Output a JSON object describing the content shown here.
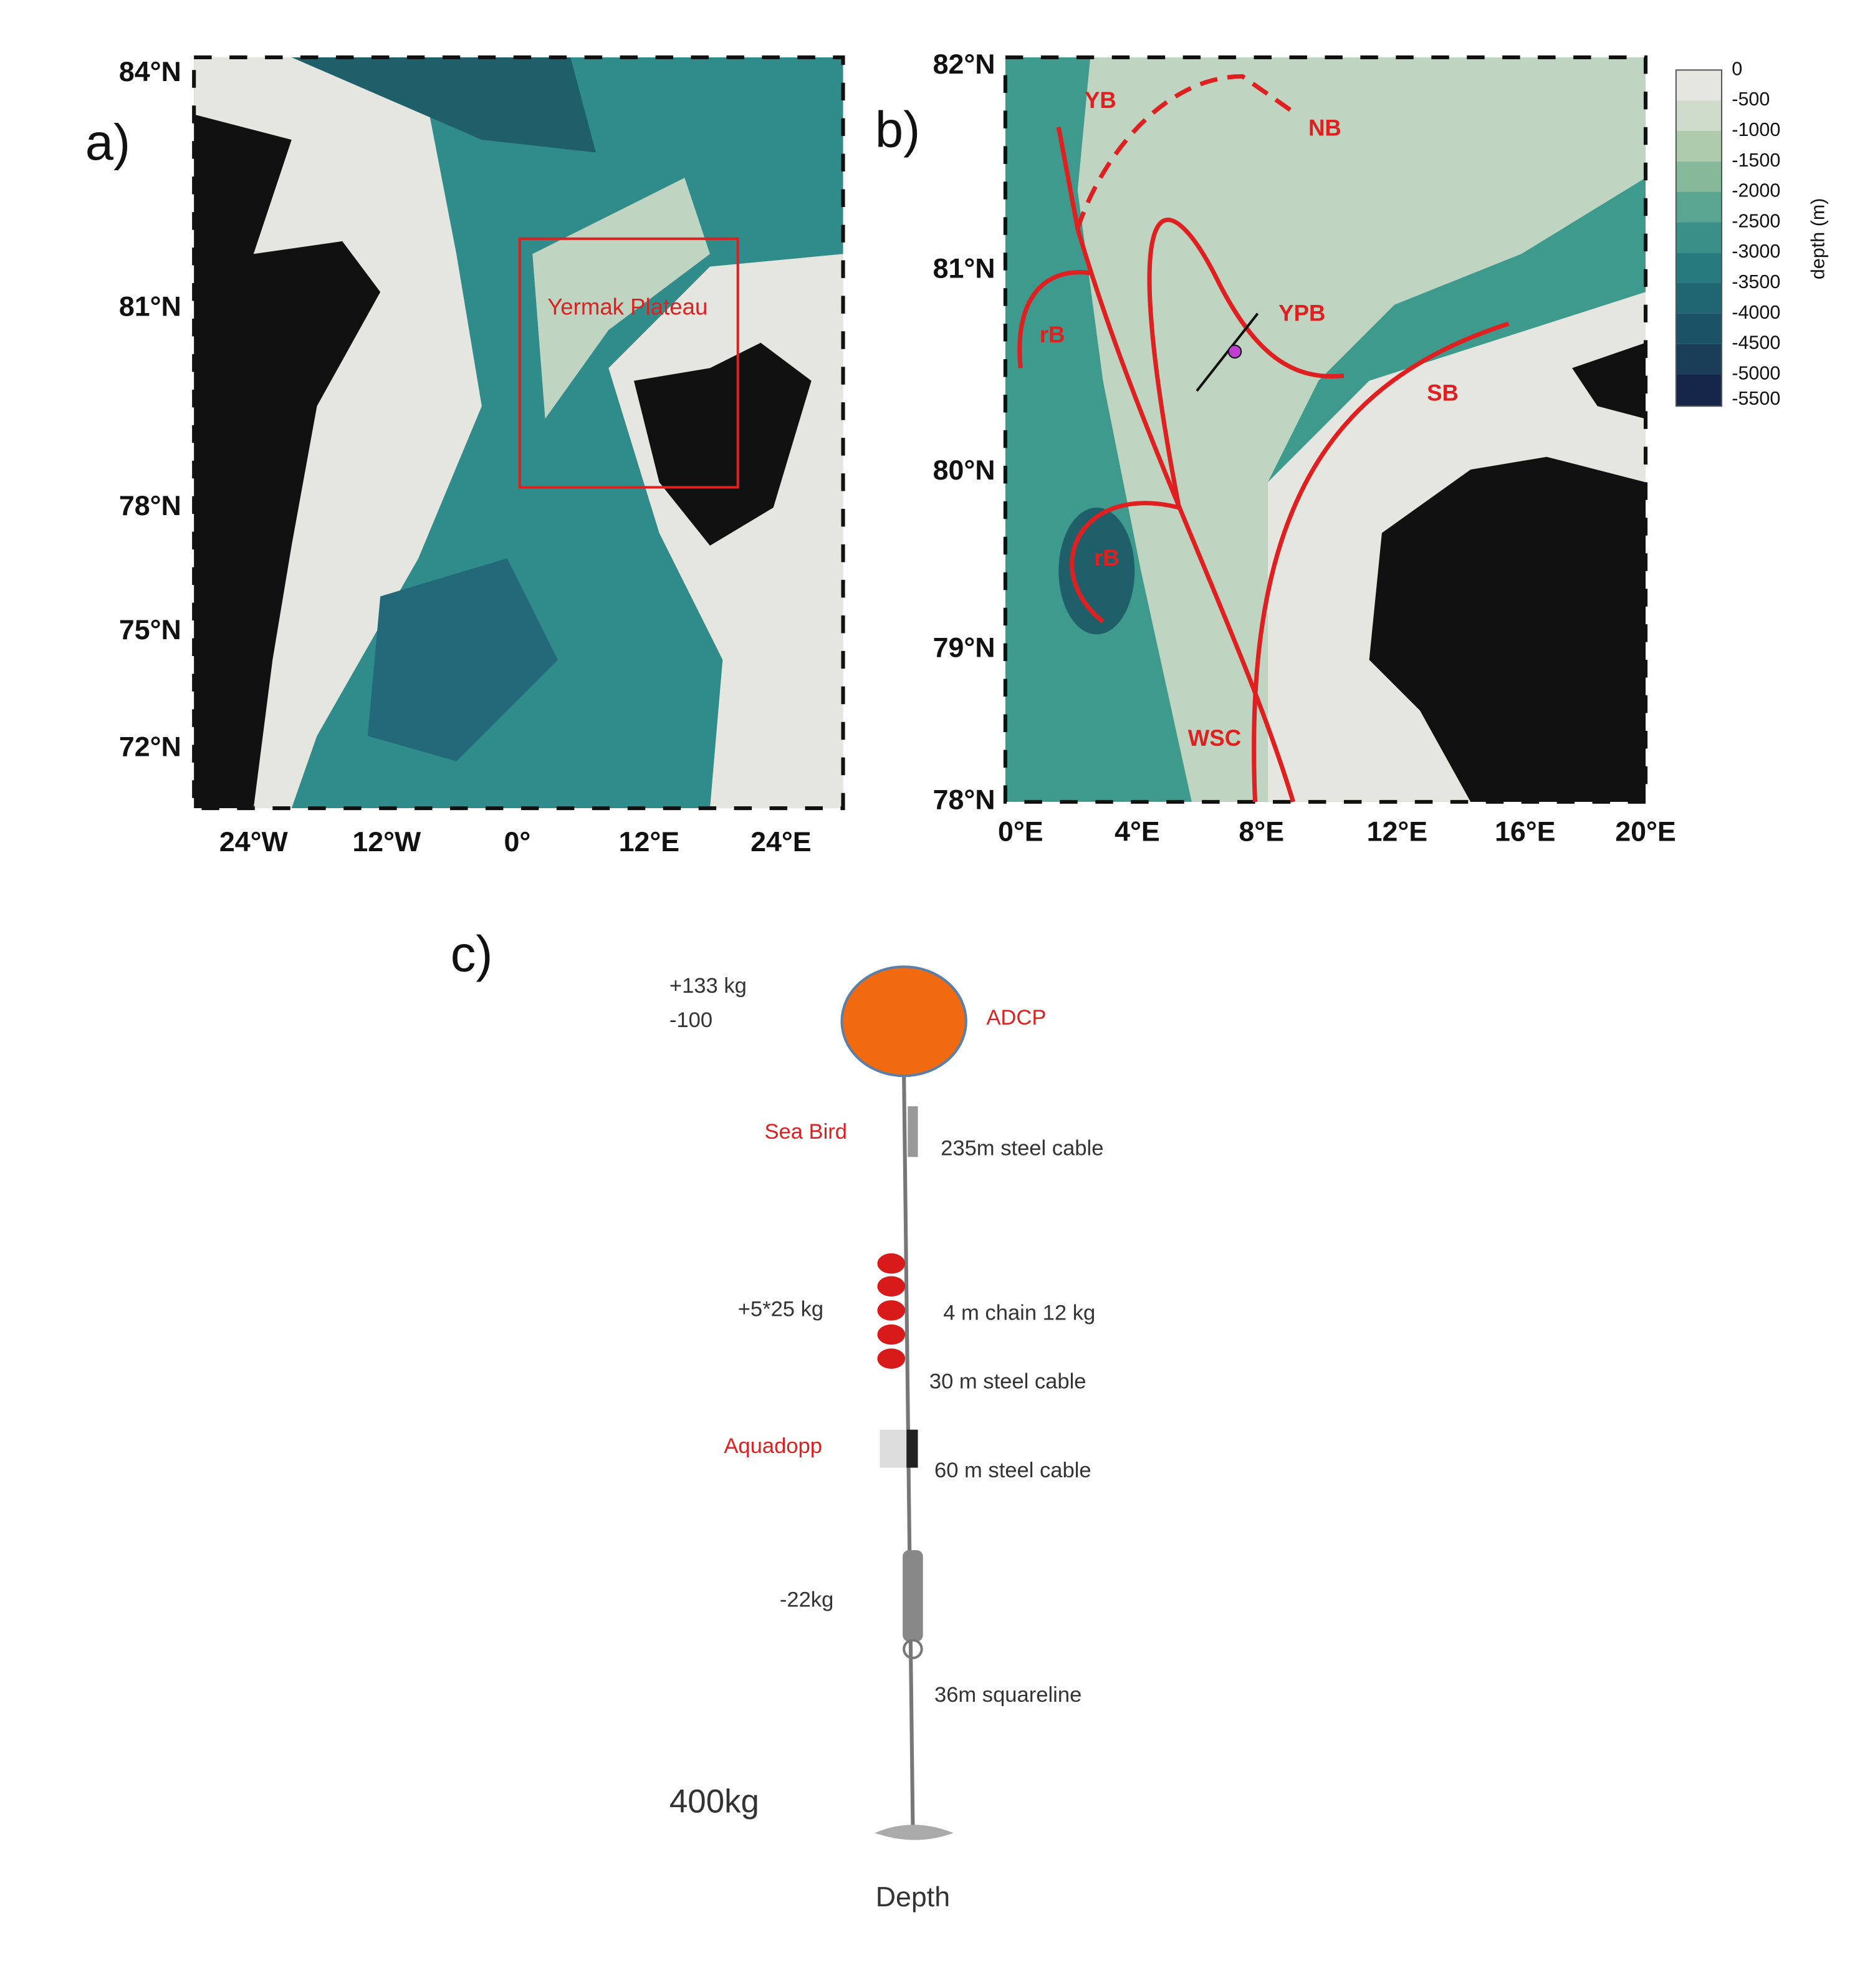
{
  "panel_a": {
    "label": "a)",
    "lat_labels": [
      "84°N",
      "81°N",
      "78°N",
      "75°N",
      "72°N"
    ],
    "lon_labels": [
      "24°W",
      "12°W",
      "0°",
      "12°E",
      "24°E"
    ],
    "box_label": "Yermak Plateau"
  },
  "panel_b": {
    "label": "b)",
    "lat_labels": [
      "82°N",
      "81°N",
      "80°N",
      "79°N",
      "78°N"
    ],
    "lon_labels": [
      "0°E",
      "4°E",
      "8°E",
      "12°E",
      "16°E",
      "20°E"
    ],
    "annotations": [
      "YB",
      "NB",
      "rB",
      "YPB",
      "SB",
      "rB",
      "WSC"
    ],
    "colorbar": {
      "title": "depth (m)",
      "ticks": [
        "0",
        "-500",
        "-1000",
        "-1500",
        "-2000",
        "-2500",
        "-3000",
        "-3500",
        "-4000",
        "-4500",
        "-5000",
        "-5500"
      ]
    }
  },
  "panel_c": {
    "label": "c)",
    "labels": [
      "+133 kg",
      "-100",
      "ADCP",
      "Sea Bird",
      "235m steel cable",
      "+5*25 kg",
      "4 m chain 12 kg",
      "30 m steel cable",
      "Aquadopp",
      "60 m steel cable",
      "-22kg",
      "36m squareline",
      "400kg",
      "Depth"
    ]
  }
}
